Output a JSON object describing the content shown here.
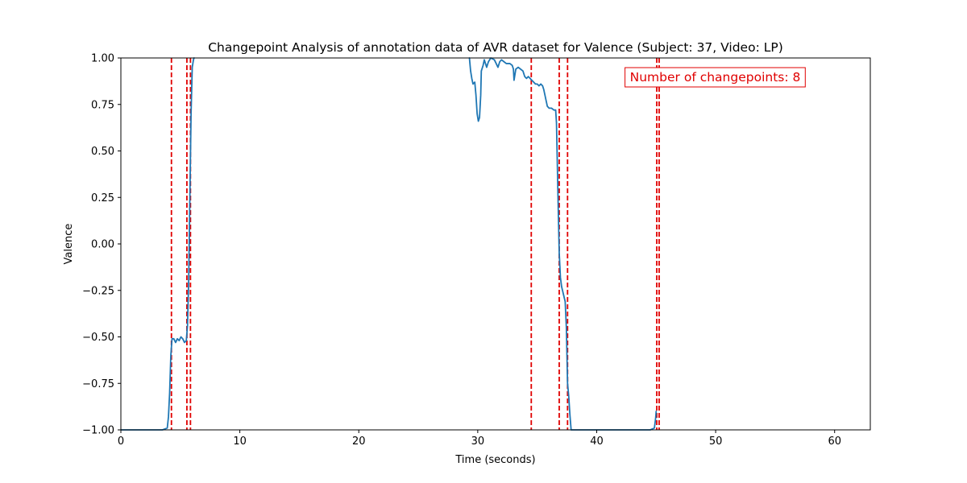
{
  "chart_data": {
    "type": "line",
    "title": "Changepoint Analysis of annotation data of AVR dataset for Valence (Subject: 37, Video: LP)",
    "xlabel": "Time (seconds)",
    "ylabel": "Valence",
    "xlim": [
      0,
      63
    ],
    "ylim": [
      -1.0,
      1.0
    ],
    "xticks": [
      0,
      10,
      20,
      30,
      40,
      50,
      60
    ],
    "xtick_labels": [
      "0",
      "10",
      "20",
      "30",
      "40",
      "50",
      "60"
    ],
    "yticks": [
      -1.0,
      -0.75,
      -0.5,
      -0.25,
      0.0,
      0.25,
      0.5,
      0.75,
      1.0
    ],
    "ytick_labels": [
      "−1.00",
      "−0.75",
      "−0.50",
      "−0.25",
      "0.00",
      "0.25",
      "0.50",
      "0.75",
      "1.00"
    ],
    "grid": false,
    "series": [
      {
        "color": "#1f77b4",
        "segments": [
          [
            [
              0,
              -1.0
            ],
            [
              2,
              -1.0
            ],
            [
              3.5,
              -1.0
            ],
            [
              3.9,
              -0.99
            ],
            [
              4.0,
              -0.93
            ],
            [
              4.1,
              -0.8
            ],
            [
              4.2,
              -0.6
            ],
            [
              4.3,
              -0.51
            ],
            [
              4.45,
              -0.51
            ],
            [
              4.6,
              -0.53
            ],
            [
              4.75,
              -0.51
            ],
            [
              4.9,
              -0.52
            ],
            [
              5.05,
              -0.5
            ],
            [
              5.2,
              -0.51
            ],
            [
              5.35,
              -0.53
            ],
            [
              5.5,
              -0.52
            ],
            [
              5.6,
              -0.44
            ],
            [
              5.7,
              -0.2
            ],
            [
              5.8,
              0.25
            ],
            [
              5.9,
              0.7
            ],
            [
              6.0,
              0.95
            ],
            [
              6.1,
              0.99
            ],
            [
              6.15,
              1.0
            ]
          ],
          [
            [
              29.3,
              1.0
            ],
            [
              29.4,
              0.93
            ],
            [
              29.5,
              0.89
            ],
            [
              29.6,
              0.86
            ],
            [
              29.75,
              0.87
            ],
            [
              29.85,
              0.8
            ],
            [
              29.95,
              0.7
            ],
            [
              30.05,
              0.66
            ],
            [
              30.15,
              0.68
            ],
            [
              30.25,
              0.8
            ],
            [
              30.3,
              0.93
            ],
            [
              30.45,
              0.96
            ],
            [
              30.55,
              0.99
            ],
            [
              30.65,
              0.97
            ],
            [
              30.75,
              0.95
            ],
            [
              30.9,
              0.98
            ],
            [
              31.1,
              1.0
            ],
            [
              31.4,
              0.99
            ],
            [
              31.55,
              0.97
            ],
            [
              31.7,
              0.95
            ],
            [
              31.85,
              0.98
            ],
            [
              32.0,
              0.99
            ],
            [
              32.2,
              0.98
            ],
            [
              32.4,
              0.97
            ],
            [
              32.7,
              0.97
            ],
            [
              32.9,
              0.96
            ],
            [
              33.0,
              0.94
            ],
            [
              33.05,
              0.88
            ],
            [
              33.1,
              0.9
            ],
            [
              33.2,
              0.94
            ],
            [
              33.4,
              0.95
            ],
            [
              33.6,
              0.94
            ],
            [
              33.8,
              0.93
            ],
            [
              33.95,
              0.9
            ],
            [
              34.1,
              0.89
            ],
            [
              34.25,
              0.9
            ],
            [
              34.4,
              0.89
            ],
            [
              34.55,
              0.88
            ],
            [
              34.7,
              0.87
            ],
            [
              34.85,
              0.86
            ],
            [
              35.0,
              0.86
            ],
            [
              35.15,
              0.85
            ],
            [
              35.3,
              0.86
            ],
            [
              35.45,
              0.85
            ],
            [
              35.55,
              0.83
            ],
            [
              35.65,
              0.8
            ],
            [
              35.75,
              0.77
            ],
            [
              35.85,
              0.74
            ],
            [
              36.0,
              0.73
            ],
            [
              36.2,
              0.73
            ],
            [
              36.4,
              0.72
            ],
            [
              36.55,
              0.72
            ],
            [
              36.62,
              0.65
            ],
            [
              36.7,
              0.4
            ],
            [
              36.78,
              0.15
            ],
            [
              36.85,
              -0.05
            ],
            [
              36.95,
              -0.18
            ],
            [
              37.05,
              -0.23
            ],
            [
              37.2,
              -0.27
            ],
            [
              37.35,
              -0.31
            ],
            [
              37.45,
              -0.45
            ],
            [
              37.55,
              -0.75
            ],
            [
              37.65,
              -0.82
            ],
            [
              37.75,
              -0.92
            ],
            [
              37.85,
              -1.0
            ],
            [
              40,
              -1.0
            ],
            [
              44.5,
              -1.0
            ],
            [
              44.85,
              -0.99
            ],
            [
              44.95,
              -0.94
            ],
            [
              45.0,
              -0.9
            ]
          ]
        ]
      }
    ],
    "changepoints": [
      4.25,
      5.55,
      5.85,
      34.5,
      36.85,
      37.55,
      45.05,
      45.25
    ],
    "changepoint_style": {
      "color": "#e00000",
      "linestyle": "dashed"
    },
    "annotation": {
      "text": "Number of changepoints: 8",
      "color": "#e00000",
      "position": "top-right"
    }
  }
}
